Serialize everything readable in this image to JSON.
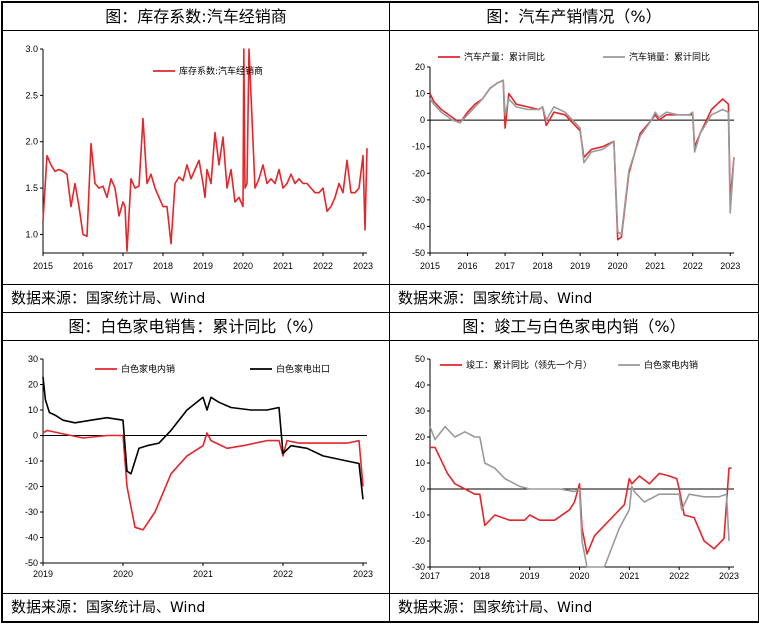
{
  "panels": [
    {
      "title": "图：库存系数:汽车经销商",
      "source_label": "数据来源：",
      "source_text": "国家统计局、Wind",
      "chart_data": {
        "type": "line",
        "x_ticks": [
          "2015",
          "2016",
          "2017",
          "2018",
          "2019",
          "2020",
          "2021",
          "2022",
          "2023"
        ],
        "y_ticks": [
          "3.0",
          "2.5",
          "2.0",
          "1.5",
          "1.0"
        ],
        "ylim": [
          0.8,
          3.0
        ],
        "xlim": [
          2015,
          2023.1
        ],
        "legend_position": "top-center",
        "series": [
          {
            "name": "库存系数:汽车经销商",
            "color": "#e3262b",
            "x": [
              2015.0,
              2015.1,
              2015.2,
              2015.3,
              2015.4,
              2015.5,
              2015.6,
              2015.7,
              2015.8,
              2015.9,
              2016.0,
              2016.1,
              2016.2,
              2016.3,
              2016.4,
              2016.5,
              2016.6,
              2016.7,
              2016.8,
              2016.9,
              2017.0,
              2017.05,
              2017.1,
              2017.2,
              2017.3,
              2017.4,
              2017.5,
              2017.6,
              2017.7,
              2017.8,
              2017.9,
              2018.0,
              2018.1,
              2018.2,
              2018.3,
              2018.4,
              2018.5,
              2018.6,
              2018.7,
              2018.8,
              2018.9,
              2019.0,
              2019.05,
              2019.1,
              2019.2,
              2019.3,
              2019.4,
              2019.5,
              2019.6,
              2019.7,
              2019.8,
              2019.9,
              2020.0,
              2020.02,
              2020.05,
              2020.1,
              2020.15,
              2020.3,
              2020.4,
              2020.5,
              2020.6,
              2020.7,
              2020.8,
              2020.9,
              2021.0,
              2021.1,
              2021.2,
              2021.3,
              2021.4,
              2021.5,
              2021.6,
              2021.7,
              2021.8,
              2021.9,
              2022.0,
              2022.1,
              2022.2,
              2022.3,
              2022.4,
              2022.5,
              2022.6,
              2022.7,
              2022.8,
              2022.9,
              2023.0,
              2023.05,
              2023.1
            ],
            "y": [
              1.15,
              1.85,
              1.75,
              1.68,
              1.7,
              1.68,
              1.65,
              1.3,
              1.55,
              1.3,
              1.0,
              0.98,
              1.98,
              1.55,
              1.5,
              1.52,
              1.4,
              1.6,
              1.5,
              1.2,
              1.35,
              1.3,
              0.82,
              1.6,
              1.5,
              1.52,
              2.25,
              1.55,
              1.65,
              1.5,
              1.4,
              1.3,
              1.3,
              0.9,
              1.55,
              1.62,
              1.58,
              1.75,
              1.6,
              1.7,
              1.8,
              1.55,
              1.4,
              1.7,
              1.55,
              2.1,
              1.75,
              2.05,
              1.5,
              1.7,
              1.35,
              1.4,
              1.3,
              3.0,
              1.5,
              1.55,
              3.0,
              1.5,
              1.6,
              1.75,
              1.55,
              1.6,
              1.55,
              1.7,
              1.5,
              1.55,
              1.65,
              1.55,
              1.6,
              1.55,
              1.55,
              1.5,
              1.45,
              1.45,
              1.5,
              1.25,
              1.3,
              1.4,
              1.55,
              1.45,
              1.8,
              1.45,
              1.45,
              1.5,
              1.85,
              1.05,
              1.93
            ]
          }
        ]
      }
    },
    {
      "title": "图：汽车产销情况（%）",
      "source_label": "数据来源：",
      "source_text": "国家统计局、Wind",
      "chart_data": {
        "type": "line",
        "x_ticks": [
          "2015",
          "2016",
          "2017",
          "2018",
          "2019",
          "2020",
          "2021",
          "2022",
          "2023"
        ],
        "y_ticks": [
          "20",
          "10",
          "0",
          "-10",
          "-20",
          "-30",
          "-40",
          "-50"
        ],
        "ylim": [
          -50,
          20
        ],
        "xlim": [
          2015,
          2023.1
        ],
        "legend_position": "top",
        "series": [
          {
            "name": "汽车产量：累计同比",
            "color": "#e3262b",
            "x": [
              2015.0,
              2015.1,
              2015.3,
              2015.6,
              2015.8,
              2016.0,
              2016.2,
              2016.4,
              2016.6,
              2016.8,
              2016.95,
              2017.0,
              2017.1,
              2017.3,
              2017.6,
              2017.9,
              2018.0,
              2018.1,
              2018.3,
              2018.6,
              2018.8,
              2019.0,
              2019.1,
              2019.3,
              2019.6,
              2019.9,
              2020.0,
              2020.1,
              2020.3,
              2020.6,
              2020.9,
              2021.0,
              2021.1,
              2021.3,
              2021.6,
              2021.9,
              2022.0,
              2022.05,
              2022.2,
              2022.5,
              2022.8,
              2022.95,
              2023.0,
              2023.1
            ],
            "y": [
              10,
              7,
              4,
              1,
              -1,
              3,
              6,
              8,
              12,
              14,
              15,
              -3,
              10,
              6,
              5,
              4,
              5,
              -2,
              3,
              2,
              -1,
              -4,
              -14,
              -11,
              -10,
              -8,
              -45,
              -44,
              -20,
              -5,
              0,
              2,
              0,
              2,
              2,
              2,
              2,
              -10,
              -5,
              4,
              8,
              6,
              -30,
              -14
            ]
          },
          {
            "name": "汽车销量：累计同比",
            "color": "#9a9a9a",
            "x": [
              2015.0,
              2015.1,
              2015.3,
              2015.6,
              2015.8,
              2016.0,
              2016.2,
              2016.4,
              2016.6,
              2016.8,
              2016.95,
              2017.0,
              2017.1,
              2017.3,
              2017.6,
              2017.9,
              2018.0,
              2018.1,
              2018.3,
              2018.6,
              2018.8,
              2019.0,
              2019.1,
              2019.3,
              2019.6,
              2019.9,
              2020.0,
              2020.1,
              2020.3,
              2020.6,
              2020.9,
              2021.0,
              2021.1,
              2021.3,
              2021.6,
              2021.9,
              2022.0,
              2022.05,
              2022.2,
              2022.5,
              2022.8,
              2022.95,
              2023.0,
              2023.1
            ],
            "y": [
              8,
              6,
              3,
              0,
              -1,
              2,
              5,
              8,
              12,
              14,
              15,
              2,
              8,
              5,
              4,
              4,
              5,
              0,
              5,
              3,
              0,
              -3,
              -16,
              -12,
              -11,
              -8,
              -42,
              -43,
              -19,
              -6,
              0,
              3,
              1,
              3,
              2,
              2,
              3,
              -12,
              -5,
              2,
              4,
              3,
              -35,
              -14
            ]
          }
        ]
      }
    },
    {
      "title": "图：白色家电销售：累计同比（%）",
      "source_label": "数据来源：",
      "source_text": "国家统计局、Wind",
      "chart_data": {
        "type": "line",
        "x_ticks": [
          "2019",
          "2020",
          "2021",
          "2022",
          "2023"
        ],
        "y_ticks": [
          "30",
          "20",
          "10",
          "0",
          "-10",
          "-20",
          "-30",
          "-40",
          "-50"
        ],
        "ylim": [
          -50,
          30
        ],
        "xlim": [
          2019,
          2023.05
        ],
        "legend_position": "top",
        "series": [
          {
            "name": "白色家电内销",
            "color": "#e3262b",
            "x": [
              2019.0,
              2019.05,
              2019.2,
              2019.5,
              2019.8,
              2020.0,
              2020.05,
              2020.15,
              2020.25,
              2020.4,
              2020.6,
              2020.8,
              2021.0,
              2021.05,
              2021.1,
              2021.3,
              2021.5,
              2021.8,
              2021.95,
              2022.0,
              2022.05,
              2022.2,
              2022.5,
              2022.8,
              2022.95,
              2023.0
            ],
            "y": [
              1,
              2,
              1,
              -1,
              0,
              0,
              -20,
              -36,
              -37,
              -30,
              -15,
              -8,
              -4,
              1,
              -2,
              -5,
              -4,
              -2,
              -2,
              -8,
              -2,
              -3,
              -3,
              -3,
              -2,
              -20
            ]
          },
          {
            "name": "白色家电出口",
            "color": "#000000",
            "x": [
              2019.0,
              2019.03,
              2019.08,
              2019.15,
              2019.25,
              2019.4,
              2019.6,
              2019.8,
              2020.0,
              2020.05,
              2020.1,
              2020.2,
              2020.3,
              2020.45,
              2020.6,
              2020.8,
              2021.0,
              2021.05,
              2021.1,
              2021.2,
              2021.35,
              2021.6,
              2021.8,
              2021.95,
              2022.0,
              2022.1,
              2022.3,
              2022.5,
              2022.8,
              2022.95,
              2023.0
            ],
            "y": [
              23,
              14,
              9,
              8,
              6,
              5,
              6,
              7,
              6,
              -14,
              -15,
              -5,
              -4,
              -3,
              2,
              10,
              15,
              10,
              15,
              13,
              11,
              10,
              10,
              11,
              -7,
              -4,
              -5,
              -8,
              -10,
              -11,
              -25
            ]
          }
        ]
      }
    },
    {
      "title": "图：竣工与白色家电内销（%）",
      "source_label": "数据来源：",
      "source_text": "国家统计局、Wind",
      "chart_data": {
        "type": "line",
        "x_ticks": [
          "2017",
          "2018",
          "2019",
          "2020",
          "2021",
          "2022",
          "2023"
        ],
        "y_ticks": [
          "50",
          "40",
          "30",
          "20",
          "10",
          "0",
          "-10",
          "-20",
          "-30"
        ],
        "ylim": [
          -30,
          50
        ],
        "xlim": [
          2017,
          2023.1
        ],
        "legend_position": "top",
        "series": [
          {
            "name": "竣工：累计同比（领先一个月）",
            "color": "#e3262b",
            "x": [
              2017.0,
              2017.1,
              2017.2,
              2017.35,
              2017.5,
              2017.7,
              2017.9,
              2018.0,
              2018.1,
              2018.3,
              2018.6,
              2018.9,
              2019.0,
              2019.2,
              2019.5,
              2019.8,
              2019.9,
              2020.0,
              2020.05,
              2020.15,
              2020.3,
              2020.5,
              2020.7,
              2020.9,
              2021.0,
              2021.05,
              2021.2,
              2021.4,
              2021.6,
              2021.8,
              2021.95,
              2022.0,
              2022.1,
              2022.3,
              2022.5,
              2022.7,
              2022.9,
              2023.0,
              2023.05
            ],
            "y": [
              16,
              16,
              12,
              6,
              2,
              0,
              -2,
              -2,
              -14,
              -10,
              -12,
              -12,
              -10,
              -12,
              -12,
              -8,
              -5,
              2,
              -15,
              -25,
              -18,
              -14,
              -10,
              -6,
              4,
              2,
              5,
              2,
              6,
              5,
              4,
              0,
              -10,
              -11,
              -20,
              -23,
              -19,
              8,
              8
            ]
          },
          {
            "name": "白色家电内销",
            "color": "#9a9a9a",
            "x": [
              2017.0,
              2017.1,
              2017.3,
              2017.5,
              2017.7,
              2017.9,
              2018.0,
              2018.1,
              2018.3,
              2018.5,
              2018.8,
              2019.0,
              2019.3,
              2019.6,
              2019.9,
              2020.0,
              2020.05,
              2020.15,
              2020.3,
              2020.5,
              2020.8,
              2021.0,
              2021.05,
              2021.1,
              2021.3,
              2021.6,
              2021.9,
              2022.0,
              2022.05,
              2022.2,
              2022.5,
              2022.8,
              2022.95,
              2023.0
            ],
            "y": [
              24,
              19,
              24,
              20,
              22,
              20,
              20,
              10,
              8,
              4,
              1,
              0,
              0,
              0,
              -1,
              0,
              -20,
              -30,
              -37,
              -30,
              -15,
              -8,
              1,
              -1,
              -5,
              -2,
              -2,
              -2,
              -8,
              -2,
              -3,
              -3,
              -2,
              -20
            ]
          }
        ]
      }
    }
  ]
}
